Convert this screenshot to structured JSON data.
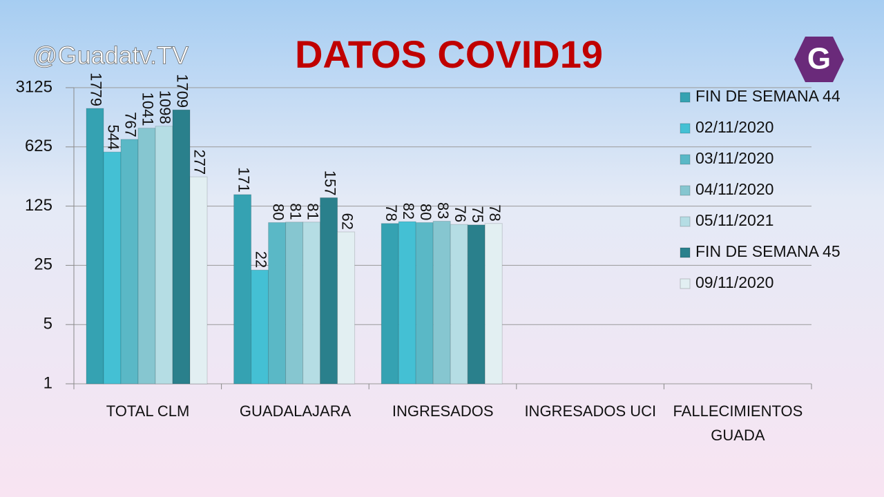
{
  "watermark": "@Guadatv.TV",
  "logo": "G",
  "chart_data": {
    "type": "bar",
    "title": "DATOS COVID19",
    "categories": [
      "TOTAL CLM",
      "GUADALAJARA",
      "INGRESADOS",
      "INGRESADOS UCI",
      "FALLECIMIENTOS GUADA"
    ],
    "yscale": "log",
    "ylim": [
      1,
      3125
    ],
    "yticks": [
      1,
      5,
      25,
      125,
      625,
      3125
    ],
    "grid": true,
    "legend": "right",
    "series": [
      {
        "name": "FIN DE SEMANA 44",
        "color": "#35a2b2",
        "values": [
          1779,
          171,
          78,
          null,
          null
        ]
      },
      {
        "name": "02/11/2020",
        "color": "#44c0d4",
        "values": [
          544,
          22,
          82,
          null,
          null
        ]
      },
      {
        "name": "03/11/2020",
        "color": "#5ab8c6",
        "values": [
          767,
          80,
          80,
          null,
          null
        ]
      },
      {
        "name": "04/11/2020",
        "color": "#86c6d0",
        "values": [
          1041,
          81,
          83,
          null,
          null
        ]
      },
      {
        "name": "05/11/2021",
        "color": "#b5dde4",
        "values": [
          1098,
          81,
          76,
          null,
          null
        ]
      },
      {
        "name": "FIN DE SEMANA 45",
        "color": "#2a808c",
        "values": [
          1709,
          157,
          75,
          null,
          null
        ]
      },
      {
        "name": "09/11/2020",
        "color": "#e2eff2",
        "values": [
          277,
          62,
          78,
          null,
          null
        ]
      }
    ]
  }
}
